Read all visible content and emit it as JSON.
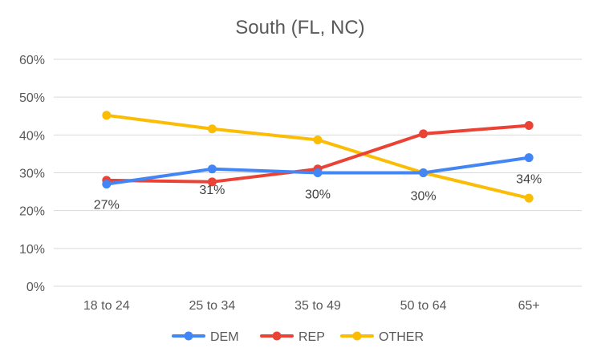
{
  "chart_data": {
    "type": "line",
    "title": "South (FL, NC)",
    "categories": [
      "18 to 24",
      "25 to 34",
      "35 to 49",
      "50 to 64",
      "65+"
    ],
    "y_ticks": [
      "0%",
      "10%",
      "20%",
      "30%",
      "40%",
      "50%",
      "60%"
    ],
    "ylim": [
      0,
      60
    ],
    "grid": true,
    "legend_position": "bottom",
    "series": [
      {
        "name": "DEM",
        "color": "#4285F4",
        "values": [
          27,
          31,
          30,
          30,
          34
        ],
        "labels": [
          "27%",
          "31%",
          "30%",
          "30%",
          "34%"
        ]
      },
      {
        "name": "REP",
        "color": "#EA4335",
        "values": [
          28,
          27.6,
          31,
          40.3,
          42.5
        ]
      },
      {
        "name": "OTHER",
        "color": "#FBBC04",
        "values": [
          45.2,
          41.6,
          38.7,
          30,
          23.3
        ]
      }
    ]
  }
}
